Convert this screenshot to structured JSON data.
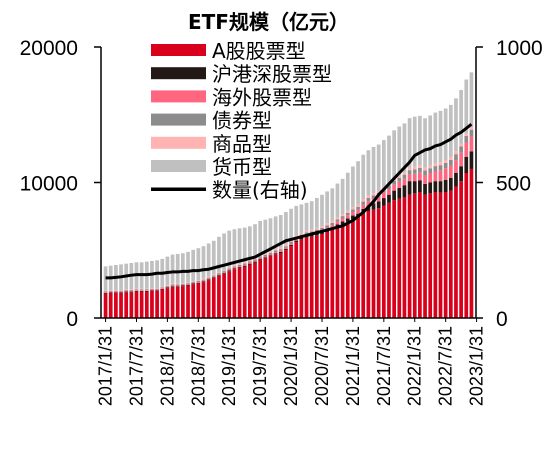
{
  "chart_data": {
    "type": "bar",
    "stacked": true,
    "title": "ETF规模（亿元）",
    "x_tick_labels": [
      "2017/1/31",
      "2017/7/31",
      "2018/1/31",
      "2018/7/31",
      "2019/1/31",
      "2019/7/31",
      "2020/1/31",
      "2020/7/31",
      "2021/1/31",
      "2021/7/31",
      "2022/1/31",
      "2022/7/31",
      "2023/1/31"
    ],
    "x_start": "2017/1/31",
    "frequency": "monthly",
    "y_left": {
      "min": 0,
      "max": 20000,
      "ticks": [
        "0",
        "10000",
        "20000"
      ]
    },
    "y_right": {
      "min": 0,
      "max": 1000,
      "ticks": [
        "0",
        "500",
        "1000"
      ]
    },
    "legend_position": "top-center",
    "grid": false,
    "series": [
      {
        "name": "A股股票型",
        "color": "#d9001b",
        "kind": "bar",
        "values": [
          1800,
          1850,
          1850,
          1850,
          1900,
          1900,
          1950,
          1950,
          1950,
          2000,
          2000,
          2100,
          2200,
          2300,
          2300,
          2350,
          2400,
          2500,
          2550,
          2650,
          2800,
          2950,
          3100,
          3250,
          3450,
          3600,
          3700,
          3800,
          3950,
          4100,
          4300,
          4400,
          4550,
          4700,
          4800,
          5000,
          5300,
          5600,
          5800,
          5950,
          6000,
          6100,
          6200,
          6350,
          6500,
          6700,
          6900,
          7100,
          7300,
          7400,
          7700,
          7900,
          8000,
          8100,
          8300,
          8500,
          8700,
          8800,
          8900,
          9100,
          9200,
          9300,
          9100,
          9200,
          9300,
          9250,
          9300,
          9400,
          9700,
          10100,
          10700,
          11000
        ]
      },
      {
        "name": "沪港深股票型",
        "color": "#231815",
        "kind": "bar",
        "values": [
          50,
          50,
          50,
          50,
          50,
          50,
          50,
          50,
          50,
          50,
          50,
          50,
          50,
          50,
          50,
          50,
          50,
          50,
          50,
          50,
          50,
          50,
          60,
          60,
          60,
          60,
          60,
          60,
          60,
          60,
          70,
          70,
          70,
          80,
          80,
          90,
          100,
          110,
          120,
          130,
          140,
          150,
          160,
          170,
          180,
          200,
          220,
          240,
          260,
          300,
          350,
          400,
          450,
          500,
          550,
          600,
          700,
          800,
          900,
          1000,
          900,
          850,
          800,
          800,
          800,
          850,
          900,
          950,
          1000,
          1100,
          1200,
          1300
        ]
      },
      {
        "name": "海外股票型",
        "color": "#ff6680",
        "kind": "bar",
        "values": [
          50,
          50,
          50,
          50,
          50,
          50,
          50,
          50,
          50,
          50,
          50,
          50,
          50,
          50,
          50,
          50,
          50,
          50,
          50,
          50,
          50,
          50,
          60,
          60,
          60,
          60,
          60,
          60,
          60,
          60,
          70,
          70,
          70,
          80,
          80,
          90,
          100,
          100,
          100,
          100,
          100,
          120,
          140,
          160,
          180,
          200,
          220,
          240,
          260,
          300,
          320,
          340,
          360,
          380,
          400,
          420,
          440,
          460,
          480,
          500,
          550,
          600,
          650,
          700,
          750,
          800,
          850,
          900,
          950,
          1000,
          1050,
          1100
        ]
      },
      {
        "name": "债券型",
        "color": "#8c8c8c",
        "kind": "bar",
        "values": [
          60,
          60,
          60,
          60,
          60,
          60,
          60,
          60,
          60,
          60,
          60,
          60,
          70,
          70,
          70,
          70,
          70,
          70,
          80,
          80,
          80,
          80,
          90,
          90,
          90,
          90,
          100,
          100,
          100,
          100,
          110,
          110,
          110,
          120,
          120,
          120,
          130,
          130,
          130,
          140,
          140,
          150,
          150,
          160,
          160,
          170,
          180,
          190,
          200,
          210,
          220,
          230,
          240,
          250,
          260,
          270,
          280,
          290,
          300,
          310,
          320,
          330,
          340,
          350,
          360,
          380,
          400,
          420,
          440,
          460,
          480,
          500
        ]
      },
      {
        "name": "商品型",
        "color": "#ffb3b3",
        "kind": "bar",
        "values": [
          50,
          50,
          50,
          50,
          50,
          50,
          50,
          50,
          50,
          50,
          50,
          50,
          60,
          60,
          60,
          60,
          60,
          60,
          70,
          70,
          70,
          70,
          80,
          80,
          90,
          90,
          100,
          100,
          100,
          100,
          110,
          110,
          110,
          120,
          120,
          120,
          130,
          130,
          130,
          130,
          140,
          140,
          140,
          150,
          150,
          150,
          150,
          150,
          160,
          160,
          160,
          160,
          170,
          170,
          170,
          170,
          180,
          180,
          180,
          190,
          190,
          190,
          200,
          200,
          200,
          210,
          210,
          210,
          220,
          220,
          220,
          230
        ]
      },
      {
        "name": "货币型",
        "color": "#c0c0c0",
        "kind": "bar",
        "values": [
          1800,
          1800,
          1850,
          1900,
          1900,
          1950,
          1950,
          1950,
          2000,
          2000,
          2050,
          2050,
          2100,
          2150,
          2200,
          2200,
          2250,
          2300,
          2350,
          2400,
          2450,
          2500,
          2600,
          2700,
          2700,
          2650,
          2600,
          2550,
          2500,
          2500,
          2500,
          2500,
          2450,
          2400,
          2400,
          2400,
          2300,
          2200,
          2100,
          2050,
          2100,
          2200,
          2300,
          2350,
          2400,
          2500,
          2600,
          2800,
          3000,
          3200,
          3300,
          3350,
          3400,
          3400,
          3450,
          3500,
          3550,
          3600,
          3600,
          3650,
          3700,
          3650,
          3650,
          3700,
          3750,
          3800,
          3800,
          3850,
          3900,
          3950,
          3950,
          4000
        ]
      },
      {
        "name": "数量(右轴)",
        "color": "#000000",
        "kind": "line",
        "axis": "right",
        "values": [
          148,
          148,
          150,
          152,
          155,
          158,
          160,
          160,
          160,
          162,
          165,
          165,
          168,
          170,
          170,
          172,
          172,
          175,
          175,
          178,
          180,
          185,
          190,
          195,
          200,
          205,
          210,
          215,
          220,
          225,
          235,
          245,
          255,
          265,
          275,
          285,
          290,
          295,
          300,
          305,
          310,
          315,
          320,
          325,
          330,
          335,
          340,
          350,
          360,
          375,
          390,
          410,
          430,
          455,
          475,
          495,
          515,
          535,
          555,
          575,
          600,
          610,
          620,
          625,
          635,
          640,
          650,
          660,
          675,
          685,
          700,
          715
        ]
      }
    ]
  }
}
